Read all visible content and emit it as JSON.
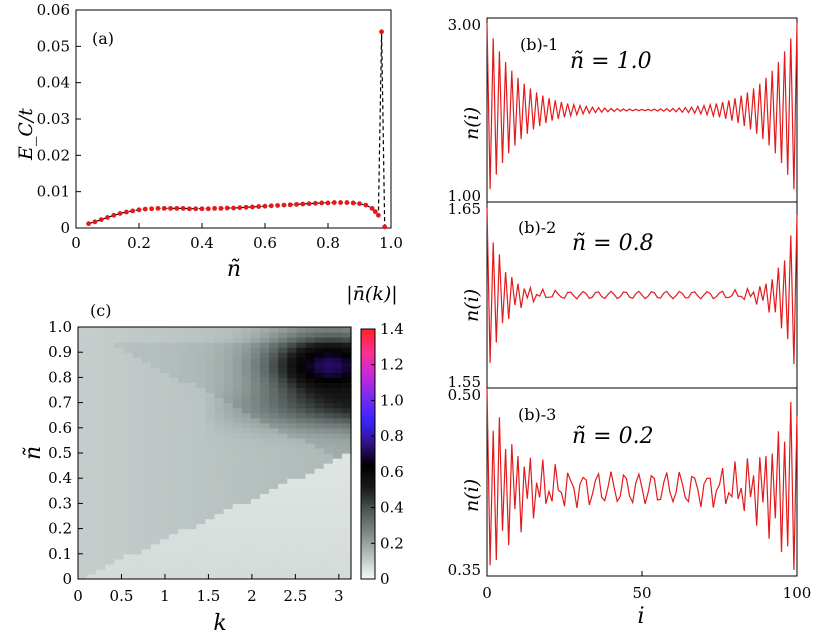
{
  "chart_data": [
    {
      "id": "a",
      "type": "scatter",
      "panel_label": "(a)",
      "xlabel": "ñ",
      "ylabel": "E_C/t",
      "xlim": [
        0,
        1.0
      ],
      "ylim": [
        0,
        0.06
      ],
      "xticks": [
        "0",
        "0.2",
        "0.4",
        "0.6",
        "0.8",
        "1.0"
      ],
      "yticks": [
        "0",
        "0.01",
        "0.02",
        "0.03",
        "0.04",
        "0.05",
        "0.06"
      ],
      "marker_color": "#e31a1c",
      "line_style": "dashed",
      "x": [
        0.04,
        0.06,
        0.08,
        0.1,
        0.12,
        0.14,
        0.16,
        0.18,
        0.2,
        0.22,
        0.24,
        0.26,
        0.28,
        0.3,
        0.32,
        0.34,
        0.36,
        0.38,
        0.4,
        0.42,
        0.44,
        0.46,
        0.48,
        0.5,
        0.52,
        0.54,
        0.56,
        0.58,
        0.6,
        0.62,
        0.64,
        0.66,
        0.68,
        0.7,
        0.72,
        0.74,
        0.76,
        0.78,
        0.8,
        0.82,
        0.84,
        0.86,
        0.88,
        0.9,
        0.92,
        0.94,
        0.95,
        0.96,
        0.97,
        0.98
      ],
      "y": [
        0.0012,
        0.0017,
        0.0023,
        0.0029,
        0.0035,
        0.004,
        0.0044,
        0.0047,
        0.005,
        0.0052,
        0.0053,
        0.0054,
        0.0054,
        0.0054,
        0.0054,
        0.0054,
        0.0053,
        0.0053,
        0.0053,
        0.0053,
        0.0054,
        0.0054,
        0.0055,
        0.0055,
        0.0056,
        0.0057,
        0.0058,
        0.0059,
        0.006,
        0.0061,
        0.0062,
        0.0063,
        0.0064,
        0.0065,
        0.0066,
        0.0067,
        0.0068,
        0.0069,
        0.0069,
        0.007,
        0.007,
        0.007,
        0.0069,
        0.0067,
        0.0063,
        0.0054,
        0.0045,
        0.0035,
        0.054,
        0.0003
      ]
    },
    {
      "id": "b1",
      "type": "line",
      "panel_label": "(b)-1",
      "annotation": "ñ = 1.0",
      "ylabel": "n(i)",
      "yticks": [
        "1.00",
        "3.00"
      ],
      "ylim": [
        1.0,
        3.0
      ],
      "xlim": [
        0,
        100
      ],
      "line_color": "#e31a1c",
      "center": 2.0,
      "edge_amplitude": 0.95,
      "decay": 6,
      "profile": "alternating"
    },
    {
      "id": "b2",
      "type": "line",
      "panel_label": "(b)-2",
      "annotation": "ñ = 0.8",
      "ylabel": "n(i)",
      "yticks": [
        "1.55",
        "1.65"
      ],
      "ylim": [
        1.55,
        1.65
      ],
      "xlim": [
        0,
        100
      ],
      "line_color": "#e31a1c",
      "center": 1.6,
      "edge_amplitude": 0.045,
      "decay": 5,
      "bulk_amplitude": 0.002,
      "profile": "oscillating"
    },
    {
      "id": "b3",
      "type": "line",
      "panel_label": "(b)-3",
      "annotation": "ñ = 0.2",
      "ylabel": "n(i)",
      "yticks": [
        "0.35",
        "0.50"
      ],
      "ylim": [
        0.35,
        0.5
      ],
      "xlim": [
        0,
        100
      ],
      "xticks": [
        "0",
        "50",
        "100"
      ],
      "xlabel": "i",
      "line_color": "#e31a1c",
      "center": 0.42,
      "edge_amplitude": 0.07,
      "decay": 10,
      "bulk_amplitude": 0.012,
      "profile": "oscillating"
    },
    {
      "id": "c",
      "type": "heatmap",
      "panel_label": "(c)",
      "xlabel": "k",
      "ylabel": "ñ",
      "xlim": [
        0,
        3.14
      ],
      "ylim": [
        0,
        1.0
      ],
      "xticks": [
        "0",
        "0.5",
        "1",
        "1.5",
        "2",
        "2.5",
        "3"
      ],
      "yticks": [
        "0",
        "0.1",
        "0.2",
        "0.3",
        "0.4",
        "0.5",
        "0.6",
        "0.7",
        "0.8",
        "0.9",
        "1.0"
      ],
      "nk": 30,
      "nn": 50,
      "colorbar_label": "|n̄(k)|",
      "colorbar_ticks": [
        "0",
        "0.2",
        "0.4",
        "0.6",
        "0.8",
        "1.0",
        "1.2",
        "1.4"
      ],
      "colorbar_range": [
        0,
        1.4
      ],
      "colorbar_colors": [
        "#f6f9f8",
        "#b8c2c0",
        "#7f8a88",
        "#4f5856",
        "#1a1a1a",
        "#000000",
        "#35108a",
        "#3a25ff",
        "#7a2af0",
        "#c82ad8",
        "#ff2f8e",
        "#ff2424"
      ]
    }
  ]
}
